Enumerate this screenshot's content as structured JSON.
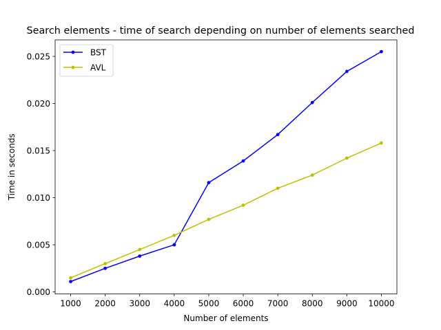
{
  "chart_data": {
    "type": "line",
    "title": "Search elements - time of search depending on number of elements searched",
    "xlabel": "Number of elements",
    "ylabel": "Time in seconds",
    "x": [
      1000,
      2000,
      3000,
      4000,
      5000,
      6000,
      7000,
      8000,
      9000,
      10000
    ],
    "xticks": [
      "1000",
      "2000",
      "3000",
      "4000",
      "5000",
      "6000",
      "7000",
      "8000",
      "9000",
      "10000"
    ],
    "xlim": [
      550,
      10450
    ],
    "ylim": [
      -0.00022,
      0.02675
    ],
    "yticks": [
      "0.000",
      "0.005",
      "0.010",
      "0.015",
      "0.020",
      "0.025"
    ],
    "ytick_values": [
      0,
      0.005,
      0.01,
      0.015,
      0.02,
      0.025
    ],
    "series": [
      {
        "name": "BST",
        "color": "#0000ff",
        "values": [
          0.0011,
          0.0025,
          0.0038,
          0.005,
          0.0116,
          0.0139,
          0.0167,
          0.0201,
          0.0234,
          0.0255
        ]
      },
      {
        "name": "AVL",
        "color": "#bfbf00",
        "values": [
          0.0015,
          0.003,
          0.0045,
          0.006,
          0.0077,
          0.0092,
          0.011,
          0.0124,
          0.0142,
          0.0158
        ]
      }
    ],
    "legend_position": "upper left",
    "grid": false
  }
}
